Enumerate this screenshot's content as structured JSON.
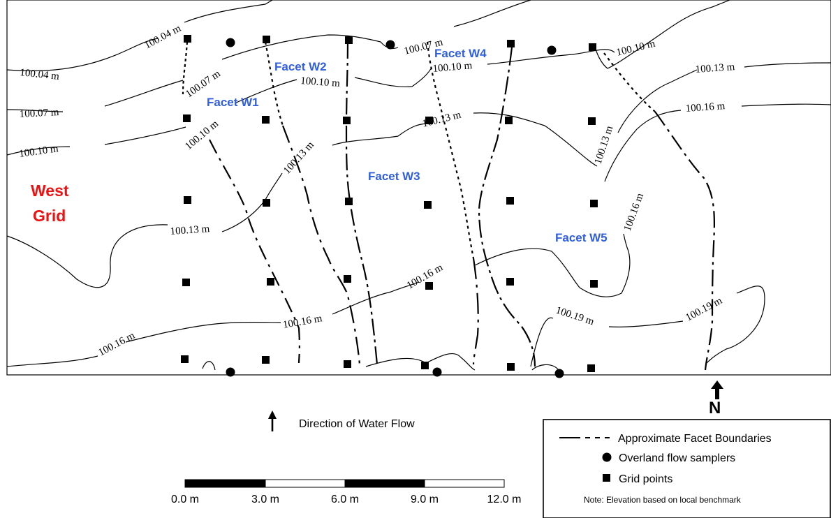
{
  "map_title": {
    "line1": "West",
    "line2": "Grid"
  },
  "facets": [
    "Facet W1",
    "Facet W2",
    "Facet W3",
    "Facet W4",
    "Facet W5"
  ],
  "contours": {
    "c1": "100.04 m",
    "c2": "100.07 m",
    "c3": "100.10 m",
    "c4": "100.13 m",
    "c5": "100.16 m",
    "c6": "100.19 m"
  },
  "flow_direction": {
    "label": "Direction of Water Flow",
    "icon": "arrow-up-icon"
  },
  "north_arrow": {
    "label": "N"
  },
  "legend": {
    "boundaries": "Approximate Facet Boundaries",
    "samplers": "Overland flow samplers",
    "grid_points": "Grid points",
    "note": "Note: Elevation based on local benchmark"
  },
  "scale_bar": {
    "ticks": [
      "0.0 m",
      "3.0 m",
      "6.0 m",
      "9.0 m",
      "12.0 m"
    ]
  },
  "colors": {
    "facet_label": "#2f5fe0",
    "grid_title": "#ee1111",
    "ink": "#000000"
  }
}
